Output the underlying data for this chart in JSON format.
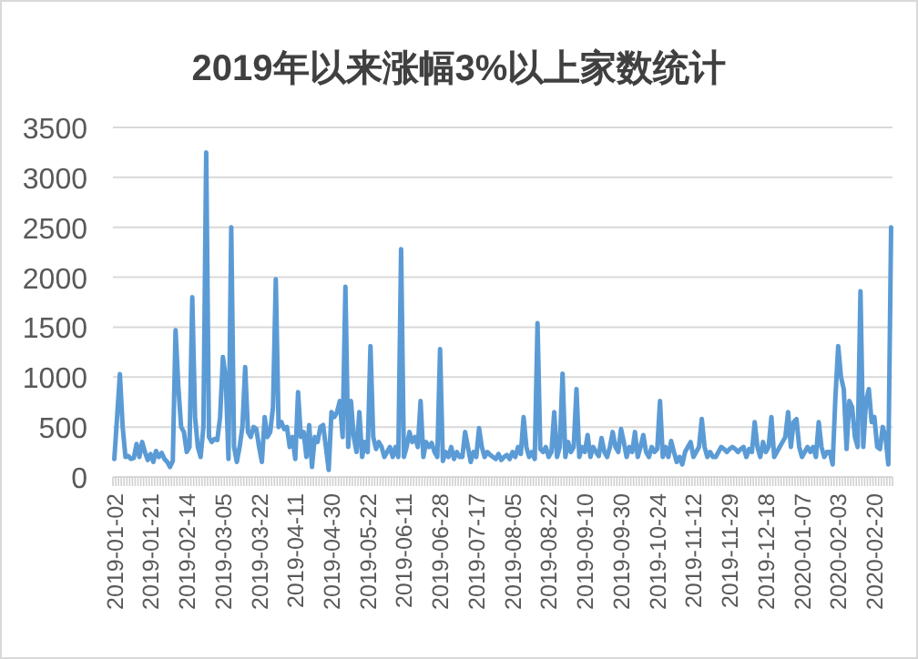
{
  "chart_data": {
    "type": "line",
    "title": "2019年以来涨幅3%以上家数统计",
    "categories": [
      "2019-01-02",
      null,
      null,
      null,
      null,
      null,
      null,
      null,
      null,
      null,
      null,
      null,
      null,
      "2019-01-21",
      null,
      null,
      null,
      null,
      null,
      null,
      null,
      null,
      null,
      null,
      null,
      null,
      "2019-02-14",
      null,
      null,
      null,
      null,
      null,
      null,
      null,
      null,
      null,
      null,
      null,
      null,
      "2019-03-05",
      null,
      null,
      null,
      null,
      null,
      null,
      null,
      null,
      null,
      null,
      null,
      null,
      "2019-03-22",
      null,
      null,
      null,
      null,
      null,
      null,
      null,
      null,
      null,
      null,
      null,
      null,
      "2019-04-11",
      null,
      null,
      null,
      null,
      null,
      null,
      null,
      null,
      null,
      null,
      null,
      null,
      "2019-04-30",
      null,
      null,
      null,
      null,
      null,
      null,
      null,
      null,
      null,
      null,
      null,
      null,
      "2019-05-22",
      null,
      null,
      null,
      null,
      null,
      null,
      null,
      null,
      null,
      null,
      null,
      null,
      "2019-06-11",
      null,
      null,
      null,
      null,
      null,
      null,
      null,
      null,
      null,
      null,
      null,
      null,
      "2019-06-28",
      null,
      null,
      null,
      null,
      null,
      null,
      null,
      null,
      null,
      null,
      null,
      null,
      "2019-07-17",
      null,
      null,
      null,
      null,
      null,
      null,
      null,
      null,
      null,
      null,
      null,
      null,
      "2019-08-05",
      null,
      null,
      null,
      null,
      null,
      null,
      null,
      null,
      null,
      null,
      null,
      null,
      "2019-08-22",
      null,
      null,
      null,
      null,
      null,
      null,
      null,
      null,
      null,
      null,
      null,
      null,
      "2019-09-10",
      null,
      null,
      null,
      null,
      null,
      null,
      null,
      null,
      null,
      null,
      null,
      null,
      "2019-09-30",
      null,
      null,
      null,
      null,
      null,
      null,
      null,
      null,
      null,
      null,
      null,
      null,
      "2019-10-24",
      null,
      null,
      null,
      null,
      null,
      null,
      null,
      null,
      null,
      null,
      null,
      null,
      "2019-11-12",
      null,
      null,
      null,
      null,
      null,
      null,
      null,
      null,
      null,
      null,
      null,
      null,
      "2019-11-29",
      null,
      null,
      null,
      null,
      null,
      null,
      null,
      null,
      null,
      null,
      null,
      null,
      "2019-12-18",
      null,
      null,
      null,
      null,
      null,
      null,
      null,
      null,
      null,
      null,
      null,
      null,
      "2020-01-07",
      null,
      null,
      null,
      null,
      null,
      null,
      null,
      null,
      null,
      null,
      null,
      null,
      "2020-02-03",
      null,
      null,
      null,
      null,
      null,
      null,
      null,
      null,
      null,
      null,
      null,
      null,
      "2020-02-20",
      null,
      null,
      null,
      null,
      null,
      null
    ],
    "values": [
      180,
      600,
      1030,
      500,
      200,
      210,
      180,
      190,
      330,
      200,
      350,
      250,
      170,
      230,
      150,
      260,
      200,
      240,
      180,
      150,
      100,
      160,
      1470,
      900,
      500,
      450,
      250,
      300,
      1800,
      600,
      300,
      200,
      500,
      3250,
      400,
      350,
      380,
      370,
      600,
      1200,
      1000,
      180,
      2500,
      300,
      150,
      300,
      500,
      1100,
      450,
      400,
      500,
      480,
      300,
      150,
      600,
      400,
      450,
      700,
      1980,
      500,
      550,
      480,
      500,
      300,
      400,
      180,
      850,
      400,
      450,
      200,
      520,
      100,
      400,
      350,
      500,
      520,
      300,
      70,
      650,
      600,
      650,
      760,
      400,
      1905,
      300,
      760,
      400,
      250,
      650,
      200,
      350,
      250,
      1310,
      400,
      280,
      350,
      300,
      200,
      250,
      300,
      200,
      300,
      200,
      2280,
      200,
      300,
      450,
      350,
      400,
      300,
      760,
      200,
      350,
      300,
      340,
      250,
      200,
      1280,
      160,
      250,
      200,
      300,
      180,
      250,
      200,
      200,
      450,
      300,
      150,
      250,
      200,
      490,
      300,
      200,
      250,
      220,
      200,
      180,
      230,
      170,
      200,
      220,
      180,
      250,
      200,
      300,
      230,
      600,
      300,
      200,
      250,
      180,
      1540,
      280,
      250,
      300,
      200,
      250,
      650,
      200,
      300,
      1035,
      200,
      350,
      250,
      300,
      880,
      200,
      300,
      250,
      420,
      200,
      300,
      250,
      210,
      390,
      250,
      200,
      300,
      450,
      300,
      250,
      480,
      350,
      200,
      300,
      250,
      450,
      200,
      300,
      420,
      250,
      200,
      300,
      250,
      280,
      760,
      200,
      300,
      200,
      360,
      250,
      150,
      200,
      125,
      250,
      300,
      350,
      200,
      250,
      300,
      580,
      300,
      200,
      250,
      200,
      200,
      250,
      300,
      280,
      250,
      280,
      300,
      280,
      250,
      280,
      300,
      200,
      280,
      250,
      550,
      300,
      200,
      350,
      250,
      300,
      600,
      200,
      250,
      300,
      350,
      400,
      650,
      300,
      550,
      580,
      300,
      200,
      250,
      300,
      250,
      300,
      200,
      550,
      300,
      200,
      250,
      250,
      125,
      800,
      1310,
      1000,
      880,
      280,
      760,
      700,
      400,
      300,
      1860,
      300,
      760,
      880,
      550,
      600,
      300,
      280,
      500,
      400,
      125,
      2500
    ],
    "color": "#5b9bd5",
    "ylim": [
      0,
      3500
    ],
    "yticks": [
      0,
      500,
      1000,
      1500,
      2000,
      2500,
      3000,
      3500
    ],
    "grid": "y"
  }
}
